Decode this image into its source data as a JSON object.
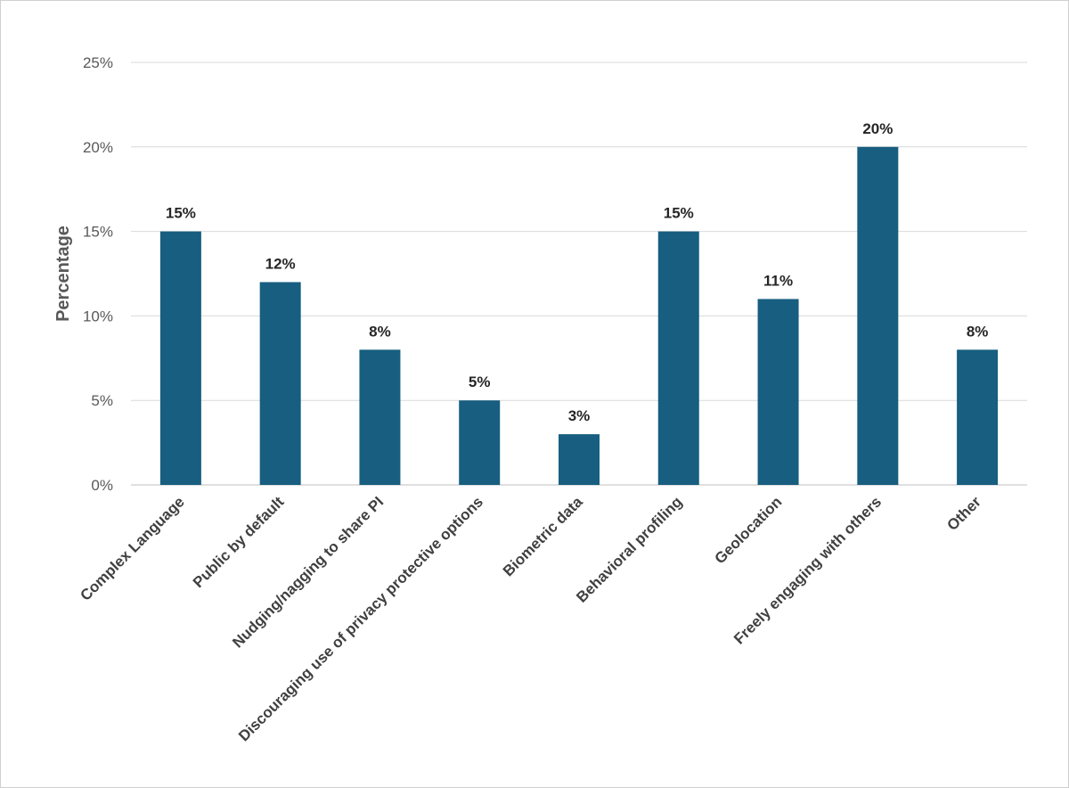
{
  "chart_data": {
    "type": "bar",
    "title": "",
    "xlabel": "",
    "ylabel": "Percentage",
    "categories": [
      "Complex Language",
      "Public by default",
      "Nudging/nagging to share PI",
      "Discouraging use of privacy protective options",
      "Biometric data",
      "Behavioral profiling",
      "Geolocation",
      "Freely engaging with others",
      "Other"
    ],
    "values": [
      15,
      12,
      8,
      5,
      3,
      15,
      11,
      20,
      8
    ],
    "data_labels": [
      "15%",
      "12%",
      "8%",
      "5%",
      "3%",
      "15%",
      "11%",
      "20%",
      "8%"
    ],
    "ylim": [
      0,
      25
    ],
    "yticks": [
      0,
      5,
      10,
      15,
      20,
      25
    ],
    "ytick_labels": [
      "0%",
      "5%",
      "10%",
      "15%",
      "20%",
      "25%"
    ],
    "grid": true,
    "legend": "none",
    "bar_color": "#175E80"
  }
}
